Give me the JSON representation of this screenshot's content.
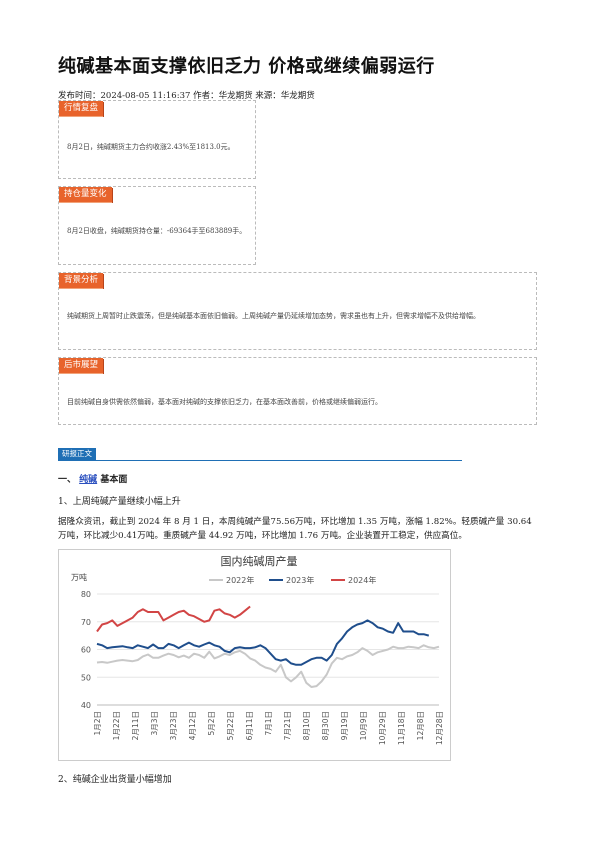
{
  "article": {
    "title": "纯碱基本面支撑依旧乏力 价格或继续偏弱运行",
    "meta": "发布时间：2024-08-05 11:16:37 作者：华龙期货 来源：华龙期货"
  },
  "boxes": [
    {
      "tag": "行情复盘",
      "text": "8月2日，纯碱期货主力合约收涨2.43%至1813.0元。"
    },
    {
      "tag": "持仓量变化",
      "text": "8月2日收盘，纯碱期货持仓量：-69364手至683889手。"
    },
    {
      "tag": "背景分析",
      "text": "纯碱期货上周暂时止跌震荡，但是纯碱基本面依旧偏弱。上周纯碱产量仍延续增加态势，需求虽也有上升，但需求增幅不及供给增幅。"
    },
    {
      "tag": "后市展望",
      "text": "目前纯碱自身供需依然偏弱，基本面对纯碱的支撑依旧乏力，在基本面改善前，价格或继续偏弱运行。"
    }
  ],
  "body": {
    "section_tag": "研报正文",
    "h1_prefix": "一、",
    "h1_link": "纯碱",
    "h1_suffix": "基本面",
    "h2": "1、上周纯碱产量继续小幅上升",
    "para": "据隆众资讯，截止到 2024 年 8 月 1 日，本周纯碱产量75.56万吨，环比增加 1.35 万吨，涨幅 1.82%。轻质碱产量 30.64 万吨，环比减少0.41万吨。重质碱产量 44.92 万吨，环比增加 1.76 万吨。企业装置开工稳定，供应高位。",
    "h3": "2、纯碱企业出货量小幅增加"
  },
  "chart_data": {
    "type": "line",
    "title": "国内纯碱周产量",
    "ylabel": "万吨",
    "ylim": [
      40,
      80
    ],
    "yticks": [
      40,
      50,
      60,
      70,
      80
    ],
    "xlabels": [
      "1月2日",
      "1月22日",
      "2月11日",
      "3月3日",
      "3月23日",
      "4月12日",
      "5月2日",
      "5月22日",
      "6月11日",
      "7月1日",
      "7月21日",
      "8月10日",
      "8月30日",
      "9月19日",
      "10月9日",
      "10月29日",
      "11月18日",
      "12月8日",
      "12月28日"
    ],
    "series": [
      {
        "name": "2022年",
        "color": "#c8c8c8",
        "values": [
          55.3,
          55.5,
          55.2,
          55.6,
          56,
          56.2,
          56,
          55.8,
          56.2,
          57.5,
          58.2,
          57,
          57,
          57.8,
          58.5,
          58,
          57.2,
          57.8,
          57,
          58.5,
          58,
          57,
          59.2,
          56.8,
          57.5,
          58.5,
          58,
          59,
          59.5,
          58.5,
          56.8,
          56,
          54.5,
          53.5,
          53,
          52,
          54.5,
          50,
          48.5,
          50,
          52,
          48,
          46.5,
          46.8,
          48.5,
          51,
          55,
          57,
          56.5,
          57.5,
          58,
          59,
          60.5,
          59.5,
          58,
          59,
          59.5,
          60,
          61,
          60.5,
          60.5,
          61,
          60.8,
          60.5,
          61.5,
          60.8,
          60.5,
          61
        ]
      },
      {
        "name": "2023年",
        "color": "#1f4e8c",
        "values": [
          62,
          61.5,
          60.5,
          60.8,
          61,
          61.2,
          60.8,
          60.5,
          61.5,
          61,
          60.5,
          61.8,
          60.5,
          60.5,
          62,
          61.5,
          60.5,
          61.5,
          62.5,
          61.5,
          61,
          61.8,
          62.5,
          61.5,
          61,
          59.5,
          59,
          60.5,
          60.8,
          60.5,
          60.5,
          60.8,
          61.5,
          60.5,
          58.5,
          56.5,
          56,
          56.5,
          55,
          54.5,
          54.5,
          55.5,
          56.5,
          57,
          57,
          56,
          58,
          62,
          64,
          66.5,
          68,
          69,
          69.5,
          70.5,
          69.5,
          68,
          67.5,
          66.5,
          66,
          69.5,
          66.5,
          66.5,
          66.5,
          65.5,
          65.5,
          65
        ]
      },
      {
        "name": "2024年",
        "color": "#d24545",
        "values": [
          66.5,
          69,
          69.5,
          70.5,
          68.5,
          69.5,
          70.5,
          71.5,
          73.5,
          74.5,
          73.5,
          73.5,
          73.5,
          70.5,
          71.5,
          72.5,
          73.5,
          74,
          72.5,
          72,
          71,
          70,
          70.5,
          74,
          74.5,
          73,
          72.5,
          71.5,
          72.5,
          74,
          75.5
        ]
      }
    ],
    "legend": "top-center"
  }
}
